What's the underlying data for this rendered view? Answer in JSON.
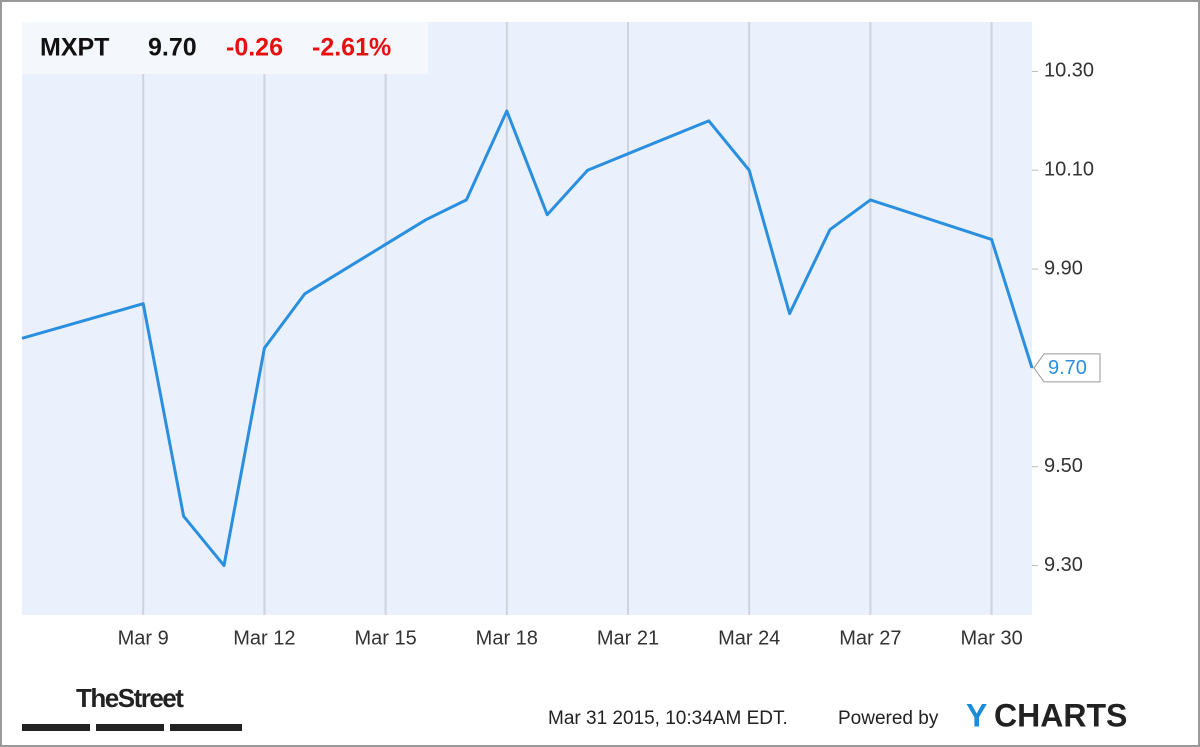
{
  "header": {
    "ticker": "MXPT",
    "price": "9.70",
    "change": "-0.26",
    "change_pct": "-2.61%"
  },
  "footer": {
    "source": "TheStreet",
    "timestamp": "Mar 31 2015, 10:34AM EDT.",
    "powered": "Powered by",
    "brand": [
      "Y",
      "CHARTS"
    ]
  },
  "chart_data": {
    "type": "line",
    "x": [
      6,
      9,
      10,
      11,
      12,
      13,
      16,
      17,
      18,
      19,
      20,
      23,
      24,
      25,
      26,
      27,
      30,
      31
    ],
    "series": [
      {
        "name": "MXPT",
        "color": "#2b8fe0",
        "values": [
          9.76,
          9.83,
          9.4,
          9.3,
          9.74,
          9.85,
          10.0,
          10.04,
          10.22,
          10.01,
          10.1,
          10.2,
          10.1,
          9.81,
          9.98,
          10.04,
          9.96,
          9.7
        ]
      }
    ],
    "end_label": {
      "value": 9.7,
      "label": "9.70"
    },
    "xlim": [
      6,
      31
    ],
    "xticks": [
      {
        "value": 9,
        "label": "Mar 9"
      },
      {
        "value": 12,
        "label": "Mar 12"
      },
      {
        "value": 15,
        "label": "Mar 15"
      },
      {
        "value": 18,
        "label": "Mar 18"
      },
      {
        "value": 21,
        "label": "Mar 21"
      },
      {
        "value": 24,
        "label": "Mar 24"
      },
      {
        "value": 27,
        "label": "Mar 27"
      },
      {
        "value": 30,
        "label": "Mar 30"
      }
    ],
    "ylim": [
      9.2,
      10.4
    ],
    "yticks": [
      {
        "value": 9.3,
        "label": "9.30"
      },
      {
        "value": 9.5,
        "label": "9.50"
      },
      {
        "value": 9.7,
        "label": "9.70"
      },
      {
        "value": 9.9,
        "label": "9.90"
      },
      {
        "value": 10.1,
        "label": "10.10"
      },
      {
        "value": 10.3,
        "label": "10.30"
      }
    ],
    "grid": "x"
  }
}
